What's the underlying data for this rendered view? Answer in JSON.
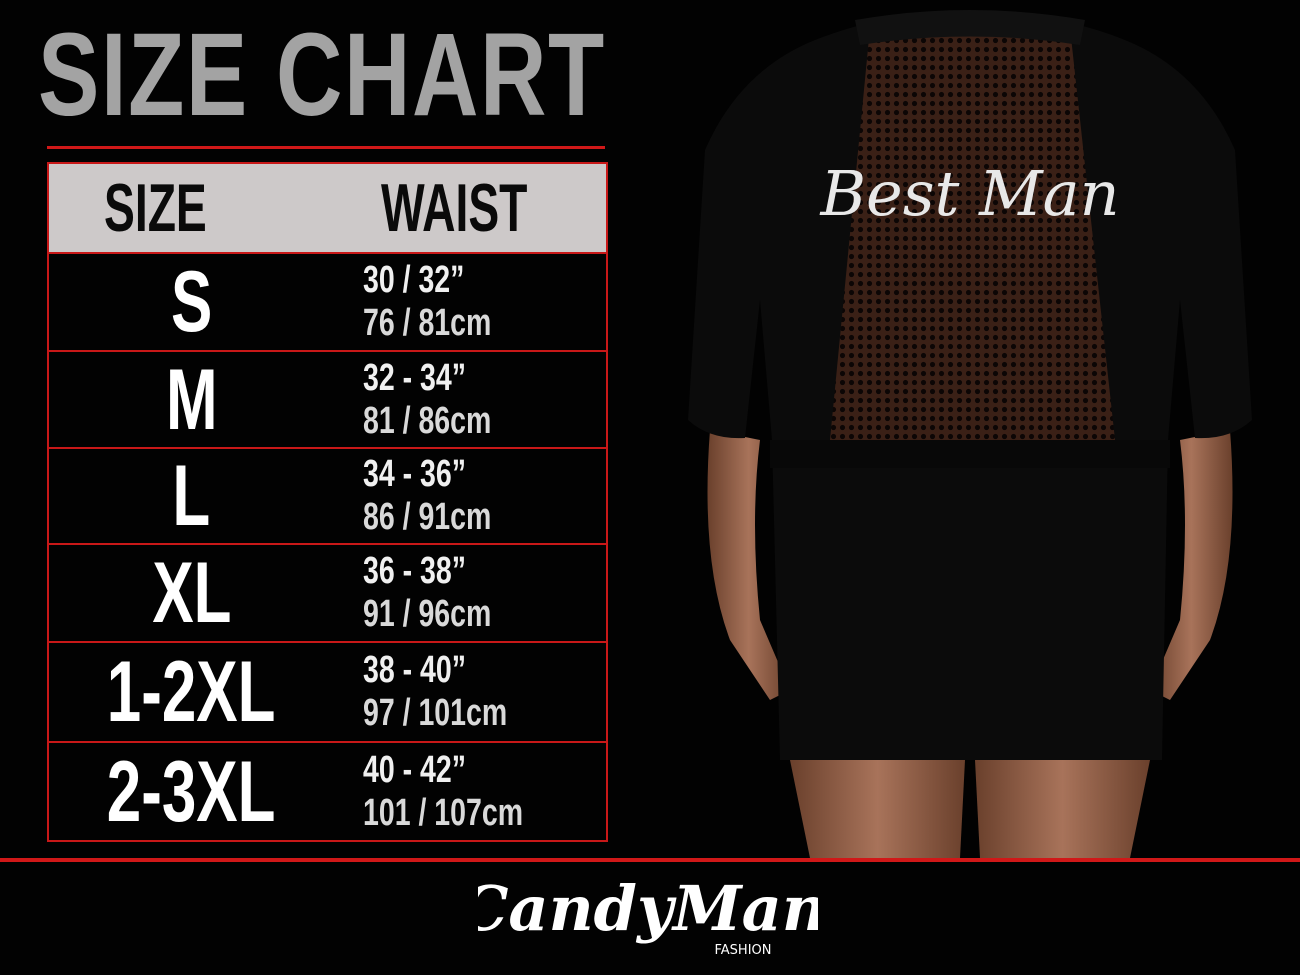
{
  "title": "SIZE CHART",
  "table": {
    "headers": {
      "size": "SIZE",
      "waist": "WAIST"
    },
    "rows": [
      {
        "size": "S",
        "inches": "30 / 32”",
        "cm": "76 / 81cm"
      },
      {
        "size": "M",
        "inches": "32 - 34”",
        "cm": "81 / 86cm"
      },
      {
        "size": "L",
        "inches": "34 - 36”",
        "cm": "86 / 91cm"
      },
      {
        "size": "XL",
        "inches": "36 - 38”",
        "cm": "91 / 96cm"
      },
      {
        "size": "1-2XL",
        "inches": "38 - 40”",
        "cm": "97 / 101cm"
      },
      {
        "size": "2-3XL",
        "inches": "40 - 42”",
        "cm": "101 / 107cm"
      }
    ]
  },
  "garment_text": "Best Man",
  "brand": {
    "name": "CandyMan",
    "sub": "FASHION"
  },
  "colors": {
    "accent": "#d01818",
    "header_bg": "#cdc9c9",
    "title": "#a3a3a3"
  }
}
